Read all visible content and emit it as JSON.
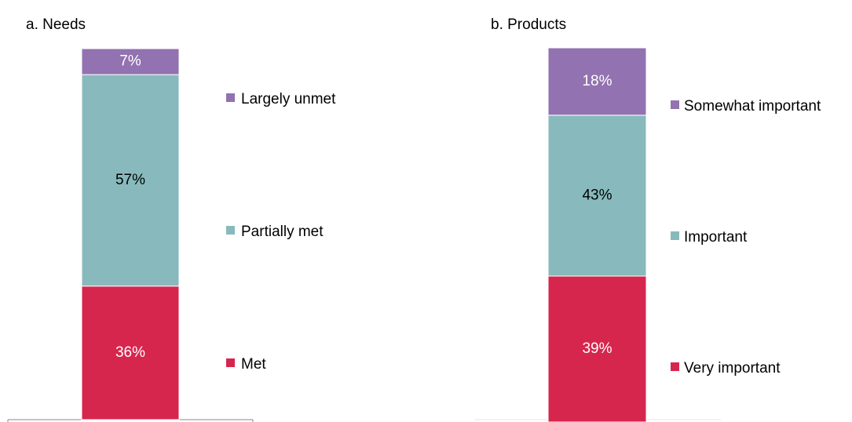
{
  "colors": {
    "met": "#d6264e",
    "partial": "#88babd",
    "unmet": "#9272b0",
    "axis": "#888888"
  },
  "chart_data": [
    {
      "type": "bar",
      "stacked": true,
      "title": "a.  Needs",
      "categories": [
        ""
      ],
      "series": [
        {
          "name": "Met",
          "values": [
            36
          ],
          "label": "36%",
          "color": "#d6264e",
          "label_color": "#ffffff"
        },
        {
          "name": "Partially met",
          "values": [
            57
          ],
          "label": "57%",
          "color": "#88babd",
          "label_color": "#000000"
        },
        {
          "name": "Largely unmet",
          "values": [
            7
          ],
          "label": "7%",
          "color": "#9272b0",
          "label_color": "#ffffff"
        }
      ],
      "ylim": [
        0,
        100
      ],
      "legend": "right"
    },
    {
      "type": "bar",
      "stacked": true,
      "title": "b.  Products",
      "categories": [
        ""
      ],
      "series": [
        {
          "name": "Very important",
          "values": [
            39
          ],
          "label": "39%",
          "color": "#d6264e",
          "label_color": "#ffffff"
        },
        {
          "name": "Important",
          "values": [
            43
          ],
          "label": "43%",
          "color": "#88babd",
          "label_color": "#000000"
        },
        {
          "name": "Somewhat important",
          "values": [
            18
          ],
          "label": "18%",
          "color": "#9272b0",
          "label_color": "#ffffff"
        }
      ],
      "ylim": [
        0,
        100
      ],
      "legend": "right"
    }
  ]
}
